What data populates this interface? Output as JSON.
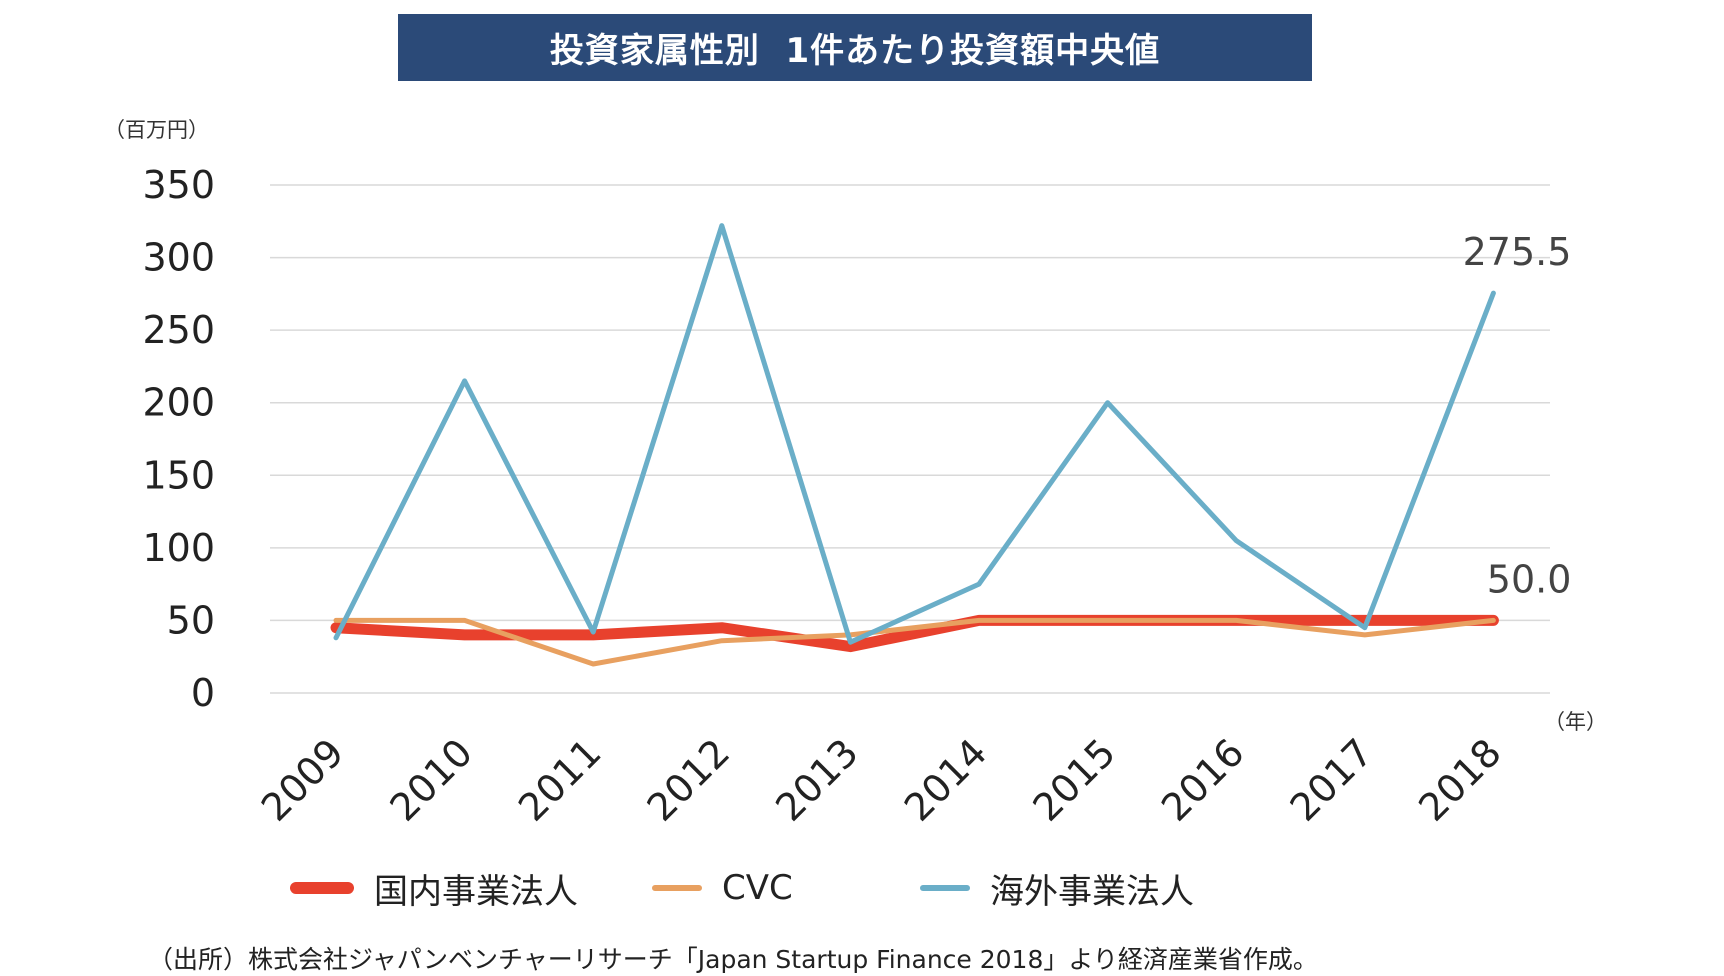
{
  "title": "投資家属性別  1件あたり投資額中央値",
  "y_unit": "（百万円）",
  "x_unit": "（年）",
  "source": "（出所）株式会社ジャパンベンチャーリサーチ「Japan Startup Finance 2018」より経済産業省作成。",
  "chart_data": {
    "type": "line",
    "title": "投資家属性別  1件あたり投資額中央値",
    "xlabel": "",
    "ylabel": "",
    "ylim": [
      0,
      350
    ],
    "yticks": [
      0,
      50,
      100,
      150,
      200,
      250,
      300,
      350
    ],
    "grid": true,
    "legend_position": "bottom",
    "categories": [
      "2009",
      "2010",
      "2011",
      "2012",
      "2013",
      "2014",
      "2015",
      "2016",
      "2017",
      "2018"
    ],
    "series": [
      {
        "name": "国内事業法人",
        "color": "#e8412d",
        "width": "thick",
        "values": [
          45,
          40,
          40,
          45,
          32,
          50,
          50,
          50,
          50,
          50
        ]
      },
      {
        "name": "CVC",
        "color": "#e8a060",
        "width": "medium",
        "values": [
          50,
          50,
          20,
          36,
          40,
          50,
          50,
          50,
          40,
          50
        ]
      },
      {
        "name": "海外事業法人",
        "color": "#6aaec8",
        "width": "medium",
        "values": [
          38,
          215,
          42,
          322,
          35,
          75,
          200,
          105,
          45,
          275.5
        ]
      }
    ],
    "annotations": [
      {
        "series": "海外事業法人",
        "category": "2018",
        "text": "275.5"
      },
      {
        "series": "国内事業法人",
        "category": "2018",
        "text": "50.0"
      }
    ]
  }
}
